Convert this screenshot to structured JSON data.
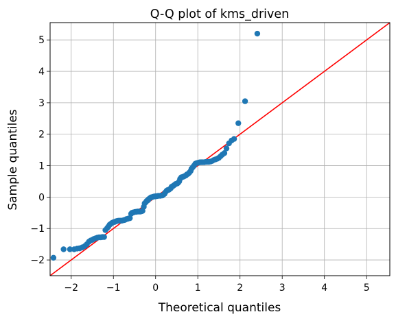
{
  "chart_data": {
    "type": "scatter",
    "title": "Q-Q plot of kms_driven",
    "xlabel": "Theoretical quantiles",
    "ylabel": "Sample quantiles",
    "xlim": [
      -2.5,
      5.55
    ],
    "ylim": [
      -2.5,
      5.55
    ],
    "xticks": [
      -2,
      -1,
      0,
      1,
      2,
      3,
      4,
      5
    ],
    "yticks": [
      -2,
      -1,
      0,
      1,
      2,
      3,
      4,
      5
    ],
    "xtick_labels": [
      "−2",
      "−1",
      "0",
      "1",
      "2",
      "3",
      "4",
      "5"
    ],
    "ytick_labels": [
      "−2",
      "−1",
      "0",
      "1",
      "2",
      "3",
      "4",
      "5"
    ],
    "grid": true,
    "colors": {
      "points": "#1f77b4",
      "reference_line": "#ff0000",
      "grid": "#b0b0b0"
    },
    "reference_line": {
      "x": [
        -2.5,
        5.55
      ],
      "y": [
        -2.5,
        5.55
      ]
    },
    "points": {
      "x": [
        -2.42,
        -2.18,
        -2.03,
        -1.93,
        -1.86,
        -1.8,
        -1.74,
        -1.68,
        -1.63,
        -1.58,
        -1.54,
        -1.5,
        -1.46,
        -1.42,
        -1.38,
        -1.34,
        -1.3,
        -1.26,
        -1.22,
        -1.19,
        -1.15,
        -1.12,
        -1.09,
        -1.06,
        -1.03,
        -1.0,
        -0.97,
        -0.94,
        -0.91,
        -0.88,
        -0.85,
        -0.83,
        -0.8,
        -0.77,
        -0.74,
        -0.72,
        -0.69,
        -0.66,
        -0.64,
        -0.61,
        -0.58,
        -0.56,
        -0.53,
        -0.51,
        -0.48,
        -0.46,
        -0.43,
        -0.41,
        -0.38,
        -0.36,
        -0.33,
        -0.31,
        -0.28,
        -0.26,
        -0.23,
        -0.21,
        -0.18,
        -0.16,
        -0.13,
        -0.11,
        -0.08,
        -0.06,
        -0.03,
        -0.01,
        0.01,
        0.03,
        0.06,
        0.08,
        0.11,
        0.13,
        0.16,
        0.18,
        0.21,
        0.23,
        0.26,
        0.28,
        0.31,
        0.33,
        0.36,
        0.38,
        0.41,
        0.43,
        0.46,
        0.48,
        0.51,
        0.53,
        0.56,
        0.58,
        0.61,
        0.64,
        0.66,
        0.69,
        0.72,
        0.74,
        0.77,
        0.8,
        0.83,
        0.85,
        0.88,
        0.91,
        0.94,
        0.97,
        1.0,
        1.03,
        1.06,
        1.09,
        1.12,
        1.15,
        1.19,
        1.22,
        1.26,
        1.3,
        1.34,
        1.38,
        1.42,
        1.46,
        1.5,
        1.54,
        1.58,
        1.63,
        1.68,
        1.74,
        1.8,
        1.86,
        1.96,
        2.12,
        2.41
      ],
      "y": [
        -1.93,
        -1.66,
        -1.66,
        -1.66,
        -1.64,
        -1.63,
        -1.6,
        -1.56,
        -1.5,
        -1.42,
        -1.38,
        -1.36,
        -1.33,
        -1.31,
        -1.29,
        -1.28,
        -1.28,
        -1.27,
        -1.27,
        -1.05,
        -0.99,
        -0.94,
        -0.88,
        -0.85,
        -0.82,
        -0.8,
        -0.79,
        -0.77,
        -0.76,
        -0.75,
        -0.75,
        -0.75,
        -0.75,
        -0.74,
        -0.73,
        -0.72,
        -0.7,
        -0.69,
        -0.68,
        -0.67,
        -0.53,
        -0.5,
        -0.49,
        -0.48,
        -0.47,
        -0.47,
        -0.46,
        -0.46,
        -0.46,
        -0.46,
        -0.45,
        -0.44,
        -0.31,
        -0.2,
        -0.16,
        -0.12,
        -0.1,
        -0.06,
        -0.03,
        -0.01,
        0.0,
        0.01,
        0.02,
        0.02,
        0.03,
        0.03,
        0.04,
        0.04,
        0.04,
        0.05,
        0.05,
        0.07,
        0.1,
        0.15,
        0.2,
        0.22,
        0.23,
        0.25,
        0.28,
        0.33,
        0.35,
        0.37,
        0.4,
        0.42,
        0.43,
        0.45,
        0.5,
        0.58,
        0.63,
        0.64,
        0.65,
        0.67,
        0.69,
        0.72,
        0.74,
        0.78,
        0.83,
        0.9,
        0.95,
        1.0,
        1.06,
        1.08,
        1.09,
        1.1,
        1.11,
        1.11,
        1.11,
        1.11,
        1.12,
        1.12,
        1.12,
        1.13,
        1.15,
        1.18,
        1.2,
        1.22,
        1.25,
        1.3,
        1.35,
        1.4,
        1.55,
        1.71,
        1.8,
        1.85,
        2.35,
        3.05,
        5.2
      ]
    }
  }
}
